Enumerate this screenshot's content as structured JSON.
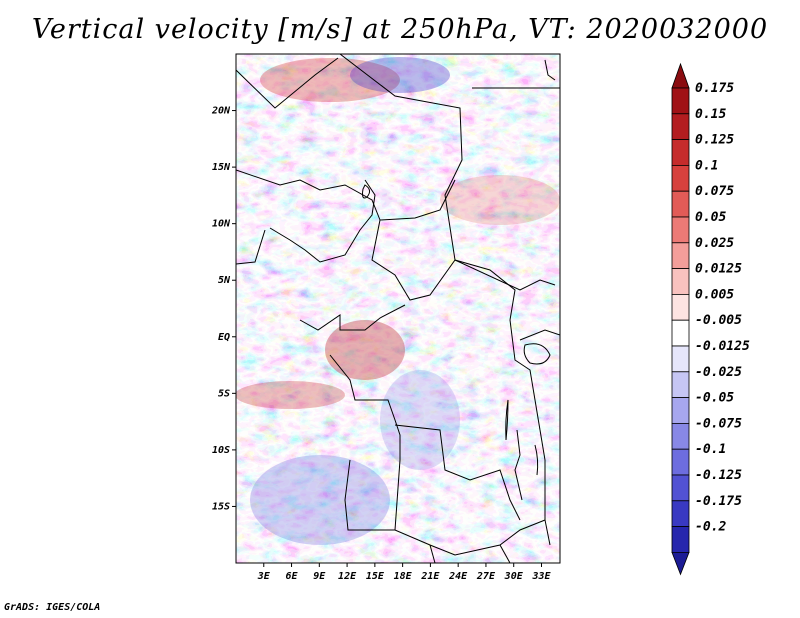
{
  "title": "Vertical velocity [m/s] at 250hPa, VT: 2020032000",
  "credit": "GrADS: IGES/COLA",
  "chart_data": {
    "type": "heatmap",
    "title": "Vertical velocity [m/s] at 250hPa, VT: 2020032000",
    "variable": "Vertical velocity",
    "units": "m/s",
    "level": "250hPa",
    "valid_time": "2020032000",
    "x_range": [
      0,
      35
    ],
    "y_range": [
      -20,
      25
    ],
    "xlabel": "",
    "ylabel": "",
    "x_ticks": [
      {
        "value": 3,
        "label": "3E"
      },
      {
        "value": 6,
        "label": "6E"
      },
      {
        "value": 9,
        "label": "9E"
      },
      {
        "value": 12,
        "label": "12E"
      },
      {
        "value": 15,
        "label": "15E"
      },
      {
        "value": 18,
        "label": "18E"
      },
      {
        "value": 21,
        "label": "21E"
      },
      {
        "value": 24,
        "label": "24E"
      },
      {
        "value": 27,
        "label": "27E"
      },
      {
        "value": 30,
        "label": "30E"
      },
      {
        "value": 33,
        "label": "33E"
      }
    ],
    "y_ticks": [
      {
        "value": 20,
        "label": "20N"
      },
      {
        "value": 15,
        "label": "15N"
      },
      {
        "value": 10,
        "label": "10N"
      },
      {
        "value": 5,
        "label": "5N"
      },
      {
        "value": 0,
        "label": "EQ"
      },
      {
        "value": -5,
        "label": "5S"
      },
      {
        "value": -10,
        "label": "10S"
      },
      {
        "value": -15,
        "label": "15S"
      }
    ],
    "colorbar": {
      "levels": [
        {
          "label": "0.175",
          "color": "#a01216"
        },
        {
          "label": "0.15",
          "color": "#b31d20"
        },
        {
          "label": "0.125",
          "color": "#c52c2c"
        },
        {
          "label": "0.1",
          "color": "#d7413d"
        },
        {
          "label": "0.075",
          "color": "#e25b57"
        },
        {
          "label": "0.05",
          "color": "#ec7a76"
        },
        {
          "label": "0.025",
          "color": "#f39e9a"
        },
        {
          "label": "0.0125",
          "color": "#f9c2bf"
        },
        {
          "label": "0.005",
          "color": "#fde4e2"
        },
        {
          "label": "-0.005",
          "color": "#ffffff"
        },
        {
          "label": "-0.0125",
          "color": "#e6e6fb"
        },
        {
          "label": "-0.025",
          "color": "#c6c6f4"
        },
        {
          "label": "-0.05",
          "color": "#a7a7ee"
        },
        {
          "label": "-0.075",
          "color": "#8888e6"
        },
        {
          "label": "-0.1",
          "color": "#6d6ddf"
        },
        {
          "label": "-0.125",
          "color": "#5252d3"
        },
        {
          "label": "-0.175",
          "color": "#3939c2"
        },
        {
          "label": "-0.2",
          "color": "#2626ad"
        }
      ],
      "top_color": "#8a0c10",
      "bottom_color": "#1c1c95"
    }
  }
}
